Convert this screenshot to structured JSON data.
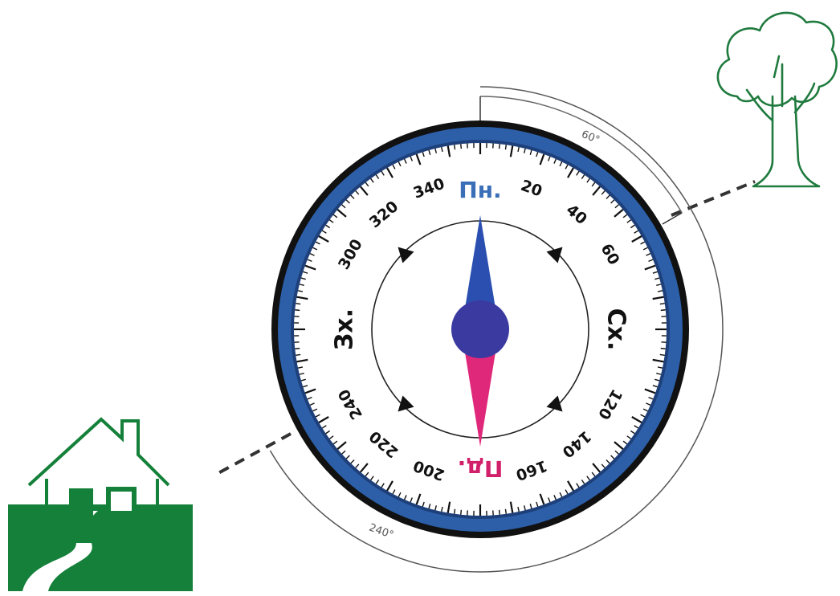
{
  "compass": {
    "cardinals": {
      "north": "Пн.",
      "east": "Сх.",
      "south": "Пд.",
      "west": "Зх."
    },
    "degree_labels": [
      {
        "deg": 20,
        "text": "20"
      },
      {
        "deg": 40,
        "text": "40"
      },
      {
        "deg": 60,
        "text": "60"
      },
      {
        "deg": 120,
        "text": "120"
      },
      {
        "deg": 140,
        "text": "140"
      },
      {
        "deg": 160,
        "text": "160"
      },
      {
        "deg": 200,
        "text": "200"
      },
      {
        "deg": 220,
        "text": "220"
      },
      {
        "deg": 240,
        "text": "240"
      },
      {
        "deg": 300,
        "text": "300"
      },
      {
        "deg": 320,
        "text": "320"
      },
      {
        "deg": 340,
        "text": "340"
      }
    ],
    "colors": {
      "ring": "#2d5fa8",
      "outer_edge": "#111111",
      "north_label": "#3a6fb8",
      "south_label": "#d11f6a",
      "needle_north": "#2a4fb0",
      "needle_south": "#e0287a",
      "hub": "#3a3aa0"
    }
  },
  "bearings": [
    {
      "azimuth": 60,
      "label": "60°"
    },
    {
      "azimuth": 240,
      "label": "240°"
    }
  ],
  "icons": {
    "house": "house-icon",
    "tree": "tree-icon"
  },
  "icon_colors": {
    "house": "#15803a",
    "tree": "#1f7a3e"
  }
}
